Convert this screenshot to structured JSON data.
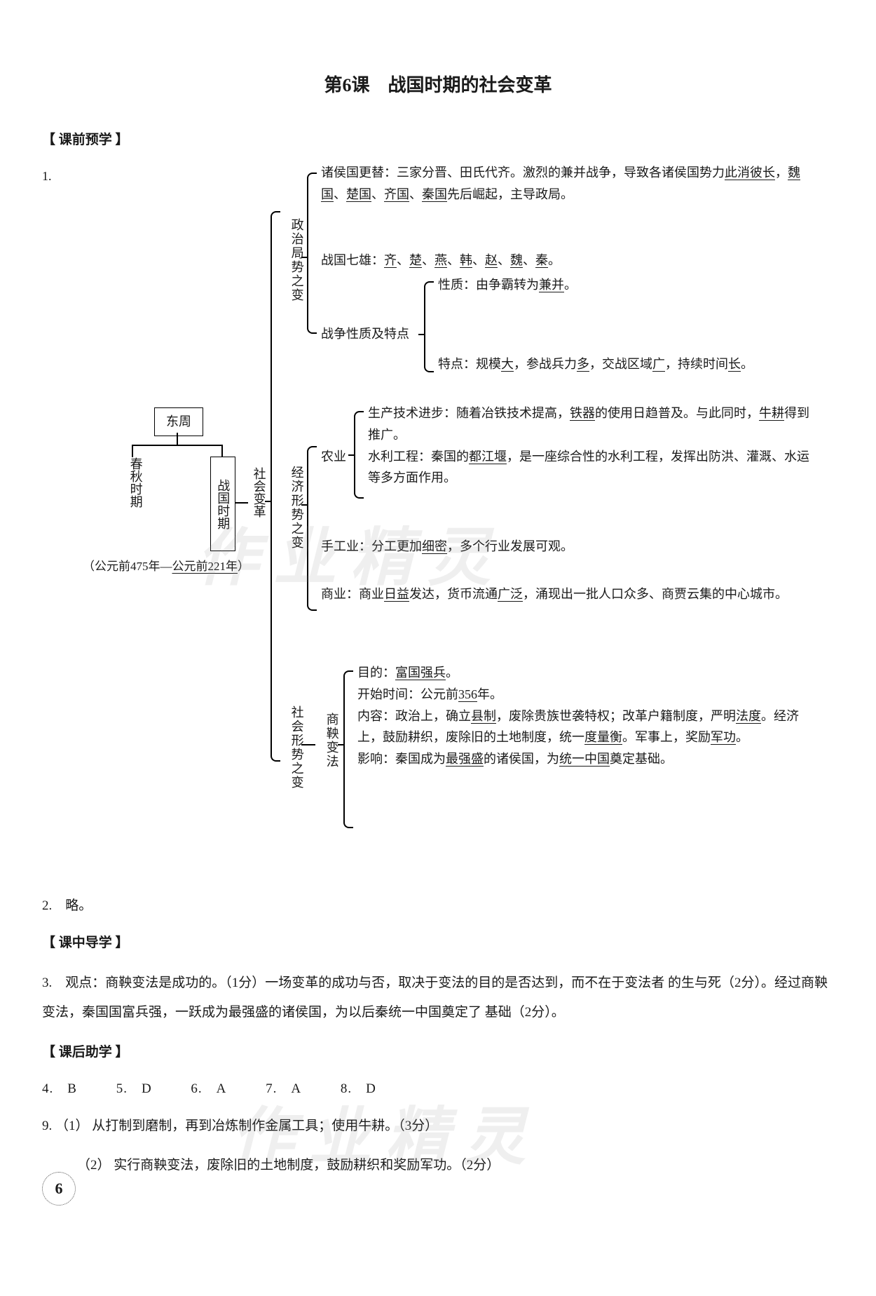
{
  "title": "第6课　战国时期的社会变革",
  "sections": {
    "pre_study": "【 课前预学 】",
    "in_class": "【 课中导学 】",
    "post_class": "【 课后助学 】"
  },
  "q1_number": "1.",
  "tree": {
    "east_zhou": "东周",
    "spring_autumn": "春秋时期",
    "warring_states": "战国时期",
    "dates": "（公元前475年—公元前221年）",
    "social_change": "社会变革",
    "politics": {
      "label": "政治局势之变",
      "item1": "诸侯国更替：三家分晋、田氏代齐。激烈的兼并战争，导致各诸侯国势力此消彼长，魏国、楚国、齐国、秦国先后崛起，主导政局。",
      "item2": "战国七雄：齐、楚、燕、韩、赵、魏、秦。",
      "war_label": "战争性质及特点",
      "war_nature": "性质：由争霸转为兼并。",
      "war_feature": "特点：规模大，参战兵力多，交战区域广，持续时间长。"
    },
    "economy": {
      "label": "经济形势之变",
      "agri_label": "农业",
      "agri_text": "生产技术进步：随着冶铁技术提高，铁器的使用日趋普及。与此同时，牛耕得到推广。水利工程：秦国的都江堰，是一座综合性的水利工程，发挥出防洪、灌溉、水运等多方面作用。",
      "handicraft": "手工业：分工更加细密，多个行业发展可观。",
      "commerce": "商业：商业日益发达，货币流通广泛，涌现出一批人口众多、商贾云集的中心城市。"
    },
    "society": {
      "label": "社会形势之变",
      "shang_yang_label": "商鞅变法",
      "text": "目的：富国强兵。\n开始时间：公元前356年。\n内容：政治上，确立县制，废除贵族世袭特权；改革户籍制度，严明法度。经济上，鼓励耕织，废除旧的土地制度，统一度量衡。军事上，奖励军功。\n影响：秦国成为最强盛的诸侯国，为统一中国奠定基础。"
    }
  },
  "q2": "2.　略。",
  "q3": "3.　观点：商鞅变法是成功的。（1分）一场变革的成功与否，取决于变法的目的是否达到，而不在于变法者 的生与死（2分）。经过商鞅变法，秦国国富兵强，一跃成为最强盛的诸侯国，为以后秦统一中国奠定了 基础（2分）。",
  "answers": {
    "q4": "4.　B",
    "q5": "5.　D",
    "q6": "6.　A",
    "q7": "7.　A",
    "q8": "8.　D"
  },
  "q9": {
    "number": "9.",
    "part1": "（1） 从打制到磨制，再到冶炼制作金属工具；使用牛耕。（3分）",
    "part2": "（2） 实行商鞅变法，废除旧的土地制度，鼓励耕织和奖励军功。（2分）"
  },
  "watermark": "作业精灵",
  "page_number": "6",
  "colors": {
    "text": "#1a1a1a",
    "background": "#ffffff",
    "watermark": "rgba(150,150,150,0.15)",
    "border": "#000000"
  }
}
